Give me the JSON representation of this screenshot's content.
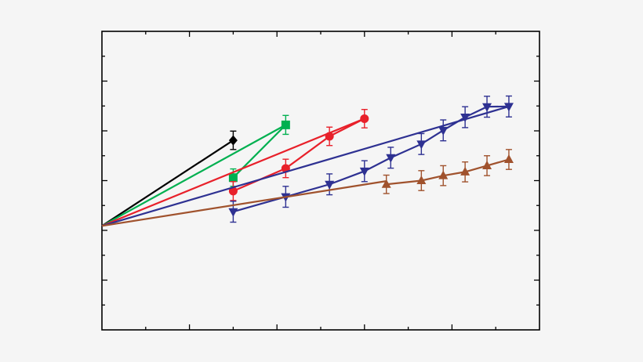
{
  "chart_data": {
    "type": "line",
    "title": "",
    "xlabel": "",
    "ylabel": "",
    "xlim": [
      0,
      10
    ],
    "ylim": [
      -6,
      6
    ],
    "x_major_ticks": [
      0,
      2,
      4,
      6,
      8,
      10
    ],
    "x_minor_ticks": [
      1,
      3,
      5,
      7,
      9
    ],
    "y_major_ticks": [
      -6,
      -4,
      -2,
      0,
      2,
      4,
      6
    ],
    "y_minor_ticks": [
      -5,
      -3,
      -1,
      1,
      3,
      5
    ],
    "grid": false,
    "legend": "none",
    "series": [
      {
        "color": "#000000",
        "marker": "diamond",
        "line_start": [
          0,
          -1.82
        ],
        "fit_end": [
          3.0,
          1.62
        ],
        "points": [
          {
            "x": 3.0,
            "y": 1.62,
            "err": 0.37
          }
        ]
      },
      {
        "color": "#00b050",
        "marker": "square",
        "line_start": [
          0,
          -1.82
        ],
        "fit_end": [
          4.2,
          2.24
        ],
        "points": [
          {
            "x": 3.0,
            "y": 0.12,
            "err": 0.35
          },
          {
            "x": 4.2,
            "y": 2.24,
            "err": 0.38
          }
        ]
      },
      {
        "color": "#e8202a",
        "marker": "circle",
        "line_start": [
          0,
          -1.82
        ],
        "fit_end": [
          6.0,
          2.49
        ],
        "points": [
          {
            "x": 3.0,
            "y": -0.42,
            "err": 0.38
          },
          {
            "x": 4.2,
            "y": 0.49,
            "err": 0.37
          },
          {
            "x": 5.2,
            "y": 1.78,
            "err": 0.37
          },
          {
            "x": 6.0,
            "y": 2.49,
            "err": 0.37
          }
        ]
      },
      {
        "color": "#2e3192",
        "marker": "triangle-down",
        "line_start": [
          0,
          -1.82
        ],
        "fit_end": [
          9.3,
          2.98
        ],
        "points": [
          {
            "x": 3.0,
            "y": -1.25,
            "err": 0.42
          },
          {
            "x": 4.2,
            "y": -0.65,
            "err": 0.42
          },
          {
            "x": 5.2,
            "y": -0.15,
            "err": 0.42
          },
          {
            "x": 6.0,
            "y": 0.38,
            "err": 0.42
          },
          {
            "x": 6.6,
            "y": 0.92,
            "err": 0.42
          },
          {
            "x": 7.3,
            "y": 1.47,
            "err": 0.42
          },
          {
            "x": 7.8,
            "y": 2.02,
            "err": 0.42
          },
          {
            "x": 8.3,
            "y": 2.55,
            "err": 0.42
          },
          {
            "x": 8.8,
            "y": 2.97,
            "err": 0.42
          },
          {
            "x": 9.3,
            "y": 2.98,
            "err": 0.42
          }
        ]
      },
      {
        "color": "#a0522d",
        "marker": "triangle-up",
        "line_start": [
          0,
          -1.82
        ],
        "fit_end": [
          6.5,
          -0.02
        ],
        "tail_points_x": [
          6.5,
          7.3,
          7.8,
          8.3,
          8.8,
          9.3
        ],
        "points": [
          {
            "x": 6.5,
            "y": -0.15,
            "err": 0.37
          },
          {
            "x": 7.3,
            "y": 0.0,
            "err": 0.4
          },
          {
            "x": 7.8,
            "y": 0.2,
            "err": 0.4
          },
          {
            "x": 8.3,
            "y": 0.35,
            "err": 0.4
          },
          {
            "x": 8.8,
            "y": 0.6,
            "err": 0.4
          },
          {
            "x": 9.3,
            "y": 0.85,
            "err": 0.4
          }
        ]
      }
    ]
  }
}
